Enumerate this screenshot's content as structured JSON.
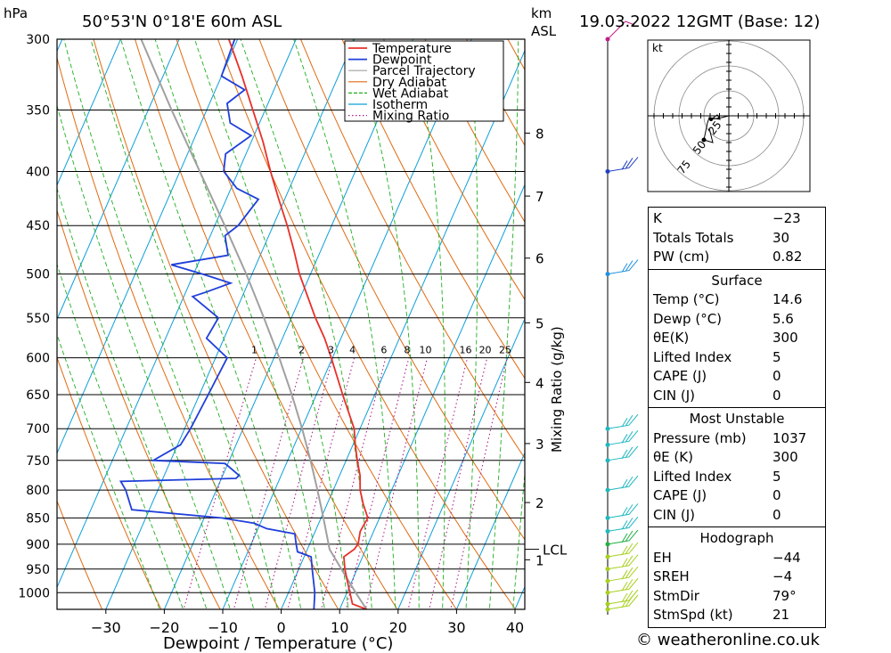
{
  "header": {
    "location": "50°53'N  0°18'E  60m  ASL",
    "datetime": "19.03.2022  12GMT  (Base: 12)",
    "hpa_label": "hPa",
    "km_label": "km",
    "asl_label": "ASL"
  },
  "chart_data": {
    "type": "skewt",
    "title": "50°53'N  0°18'E  60m  ASL",
    "xlabel": "Dewpoint / Temperature (°C)",
    "ylabel_right": "Mixing Ratio (g/kg)",
    "xlim": [
      -40,
      40
    ],
    "ylim": [
      1037,
      300
    ],
    "pressure_ticks": [
      300,
      350,
      400,
      450,
      500,
      550,
      600,
      650,
      700,
      750,
      800,
      850,
      900,
      950,
      1000
    ],
    "pressure_tick_labels": [
      "300",
      "350",
      "400",
      "450",
      "500",
      "550",
      "600",
      "650",
      "700",
      "750",
      "800",
      "850",
      "900",
      "950",
      "1000"
    ],
    "temp_ticks": [
      -30,
      -20,
      -10,
      0,
      10,
      20,
      30,
      40
    ],
    "temp_tick_labels": [
      "−30",
      "−20",
      "−10",
      "0",
      "10",
      "20",
      "30",
      "40"
    ],
    "km_ticks": [
      {
        "label": "8",
        "p": 368
      },
      {
        "label": "7",
        "p": 422
      },
      {
        "label": "6",
        "p": 483
      },
      {
        "label": "5",
        "p": 556
      },
      {
        "label": "4",
        "p": 633
      },
      {
        "label": "3",
        "p": 723
      },
      {
        "label": "2",
        "p": 822
      },
      {
        "label": "1",
        "p": 931
      }
    ],
    "lcl": {
      "label": "LCL",
      "p": 910
    },
    "mixing_ratio_labels": [
      "1",
      "2",
      "3",
      "4",
      "6",
      "8",
      "10",
      "16",
      "20",
      "25"
    ],
    "mixing_ratio_values": [
      1,
      2,
      3,
      4,
      6,
      8,
      10,
      16,
      20,
      25
    ],
    "legend": [
      "Temperature",
      "Dewpoint",
      "Parcel Trajectory",
      "Dry Adiabat",
      "Wet Adiabat",
      "Isotherm",
      "Mixing Ratio"
    ],
    "colors": {
      "temperature": "#e8302a",
      "dewpoint": "#1f3fd9",
      "parcel": "#a0a0a0",
      "dry": "#e06a10",
      "wet": "#1fae1f",
      "isotherm": "#0d9fd8",
      "mixing": "#b0208a"
    },
    "temperature": [
      {
        "p": 1037,
        "t": 14.6
      },
      {
        "p": 1025,
        "t": 11.8
      },
      {
        "p": 1000,
        "t": 10.5
      },
      {
        "p": 975,
        "t": 9.2
      },
      {
        "p": 950,
        "t": 7.9
      },
      {
        "p": 925,
        "t": 6.8
      },
      {
        "p": 910,
        "t": 8.0
      },
      {
        "p": 900,
        "t": 8.3
      },
      {
        "p": 875,
        "t": 7.7
      },
      {
        "p": 850,
        "t": 8.0
      },
      {
        "p": 825,
        "t": 6.2
      },
      {
        "p": 800,
        "t": 4.6
      },
      {
        "p": 775,
        "t": 3.5
      },
      {
        "p": 750,
        "t": 1.9
      },
      {
        "p": 725,
        "t": 0.4
      },
      {
        "p": 700,
        "t": -1.0
      },
      {
        "p": 650,
        "t": -5.5
      },
      {
        "p": 600,
        "t": -10.2
      },
      {
        "p": 575,
        "t": -12.8
      },
      {
        "p": 550,
        "t": -15.9
      },
      {
        "p": 500,
        "t": -21.9
      },
      {
        "p": 475,
        "t": -24.6
      },
      {
        "p": 450,
        "t": -27.6
      },
      {
        "p": 425,
        "t": -31.0
      },
      {
        "p": 400,
        "t": -34.5
      },
      {
        "p": 375,
        "t": -38.0
      },
      {
        "p": 350,
        "t": -42.1
      },
      {
        "p": 325,
        "t": -46.5
      },
      {
        "p": 300,
        "t": -51.5
      }
    ],
    "dewpoint": [
      {
        "p": 1037,
        "td": 5.6
      },
      {
        "p": 1000,
        "td": 4.5
      },
      {
        "p": 950,
        "td": 2.3
      },
      {
        "p": 925,
        "td": 1.2
      },
      {
        "p": 915,
        "td": -1.5
      },
      {
        "p": 900,
        "td": -2.3
      },
      {
        "p": 880,
        "td": -3.3
      },
      {
        "p": 870,
        "td": -8.5
      },
      {
        "p": 860,
        "td": -11.0
      },
      {
        "p": 850,
        "td": -17.0
      },
      {
        "p": 835,
        "td": -33.0
      },
      {
        "p": 800,
        "td": -35.5
      },
      {
        "p": 785,
        "td": -37.0
      },
      {
        "p": 780,
        "td": -17.5
      },
      {
        "p": 775,
        "td": -17.2
      },
      {
        "p": 755,
        "td": -20.5
      },
      {
        "p": 750,
        "td": -33.0
      },
      {
        "p": 725,
        "td": -29.5
      },
      {
        "p": 700,
        "td": -29.0
      },
      {
        "p": 650,
        "td": -28.5
      },
      {
        "p": 600,
        "td": -28.0
      },
      {
        "p": 575,
        "td": -33.0
      },
      {
        "p": 550,
        "td": -32.5
      },
      {
        "p": 525,
        "td": -38.5
      },
      {
        "p": 520,
        "td": -36.5
      },
      {
        "p": 510,
        "td": -33.0
      },
      {
        "p": 500,
        "td": -38.5
      },
      {
        "p": 490,
        "td": -44.5
      },
      {
        "p": 480,
        "td": -35.5
      },
      {
        "p": 460,
        "td": -37.5
      },
      {
        "p": 450,
        "td": -36.0
      },
      {
        "p": 425,
        "td": -34.5
      },
      {
        "p": 415,
        "td": -39.0
      },
      {
        "p": 400,
        "td": -42.5
      },
      {
        "p": 385,
        "td": -43.5
      },
      {
        "p": 370,
        "td": -40.5
      },
      {
        "p": 360,
        "td": -45.0
      },
      {
        "p": 345,
        "td": -47.0
      },
      {
        "p": 335,
        "td": -45.0
      },
      {
        "p": 325,
        "td": -50.0
      },
      {
        "p": 300,
        "td": -50.5
      }
    ],
    "parcel": [
      {
        "p": 1037,
        "t": 14.6
      },
      {
        "p": 1000,
        "t": 11.5
      },
      {
        "p": 950,
        "t": 7.3
      },
      {
        "p": 910,
        "t": 3.8
      },
      {
        "p": 850,
        "t": 0.4
      },
      {
        "p": 800,
        "t": -2.7
      },
      {
        "p": 750,
        "t": -6.1
      },
      {
        "p": 700,
        "t": -9.9
      },
      {
        "p": 650,
        "t": -14.2
      },
      {
        "p": 600,
        "t": -19.1
      },
      {
        "p": 550,
        "t": -24.7
      },
      {
        "p": 500,
        "t": -31.0
      },
      {
        "p": 450,
        "t": -38.3
      },
      {
        "p": 400,
        "t": -46.6
      },
      {
        "p": 350,
        "t": -56.0
      },
      {
        "p": 300,
        "t": -66.5
      }
    ],
    "wind_barbs_pressure": [
      300,
      400,
      500,
      700,
      725,
      750,
      800,
      850,
      875,
      900,
      925,
      950,
      975,
      1000,
      1025,
      1037
    ]
  },
  "hodograph": {
    "unit_label": "kt",
    "ring_labels": [
      "25",
      "50",
      "75"
    ]
  },
  "stats": {
    "top": [
      {
        "label": "K",
        "value": "−23"
      },
      {
        "label": "Totals Totals",
        "value": "30"
      },
      {
        "label": "PW (cm)",
        "value": "0.82"
      }
    ],
    "surface_title": "Surface",
    "surface": [
      {
        "label": "Temp (°C)",
        "value": "14.6"
      },
      {
        "label": "Dewp (°C)",
        "value": "5.6"
      },
      {
        "label": "θE(K)",
        "value": "300"
      },
      {
        "label": "Lifted Index",
        "value": "5"
      },
      {
        "label": "CAPE (J)",
        "value": "0"
      },
      {
        "label": "CIN (J)",
        "value": "0"
      }
    ],
    "mu_title": "Most Unstable",
    "mu": [
      {
        "label": "Pressure (mb)",
        "value": "1037"
      },
      {
        "label": "θE (K)",
        "value": "300"
      },
      {
        "label": "Lifted Index",
        "value": "5"
      },
      {
        "label": "CAPE (J)",
        "value": "0"
      },
      {
        "label": "CIN (J)",
        "value": "0"
      }
    ],
    "hodo_title": "Hodograph",
    "hodo": [
      {
        "label": "EH",
        "value": "−44"
      },
      {
        "label": "SREH",
        "value": "−4"
      },
      {
        "label": "StmDir",
        "value": "79°"
      },
      {
        "label": "StmSpd (kt)",
        "value": "21"
      }
    ]
  },
  "credit": "© weatheronline.co.uk"
}
